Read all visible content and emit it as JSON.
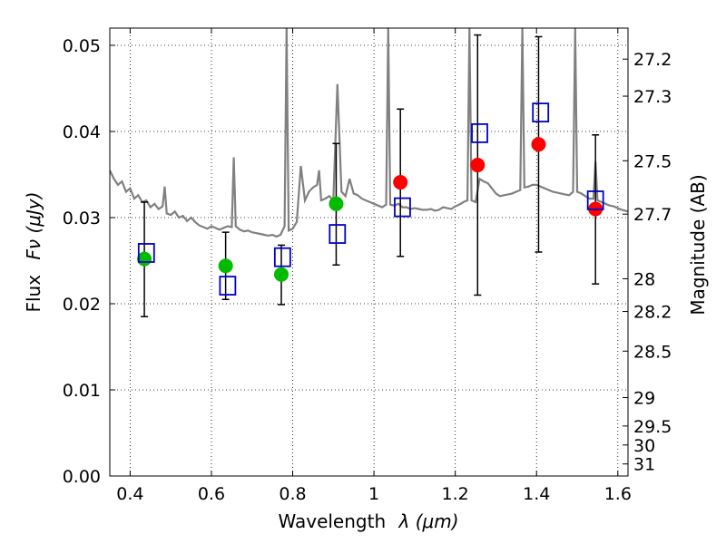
{
  "chart_data": {
    "type": "scatter",
    "xlabel_text": "Wavelength",
    "xlabel_math": "λ (μm)",
    "ylabel_text": "Flux",
    "ylabel_math": "Fν (μJy)",
    "y2label": "Magnitude (AB)",
    "xlim": [
      0.35,
      1.625
    ],
    "ylim": [
      0.0,
      0.052
    ],
    "grid": true,
    "xticks": [
      {
        "v": 0.4,
        "label": "0.4"
      },
      {
        "v": 0.6,
        "label": "0.6"
      },
      {
        "v": 0.8,
        "label": "0.8"
      },
      {
        "v": 1.0,
        "label": "1"
      },
      {
        "v": 1.2,
        "label": "1.2"
      },
      {
        "v": 1.4,
        "label": "1.4"
      },
      {
        "v": 1.6,
        "label": "1.6"
      }
    ],
    "yticks": [
      {
        "v": 0.0,
        "label": "0.00"
      },
      {
        "v": 0.01,
        "label": "0.01"
      },
      {
        "v": 0.02,
        "label": "0.02"
      },
      {
        "v": 0.03,
        "label": "0.03"
      },
      {
        "v": 0.04,
        "label": "0.04"
      },
      {
        "v": 0.05,
        "label": "0.05"
      }
    ],
    "mag_ticks": [
      {
        "v": 0.0484,
        "label": "27.2"
      },
      {
        "v": 0.0441,
        "label": "27.3"
      },
      {
        "v": 0.0366,
        "label": "27.5"
      },
      {
        "v": 0.0304,
        "label": "27.7"
      },
      {
        "v": 0.0229,
        "label": "28"
      },
      {
        "v": 0.0191,
        "label": "28.2"
      },
      {
        "v": 0.0145,
        "label": "28.5"
      },
      {
        "v": 0.0091,
        "label": "29"
      },
      {
        "v": 0.0058,
        "label": "29.5"
      },
      {
        "v": 0.0036,
        "label": "30"
      },
      {
        "v": 0.0014,
        "label": "31"
      }
    ],
    "series": [
      {
        "marker": "circle",
        "color": "#00bb00",
        "points": [
          {
            "x": 0.435,
            "y": 0.0252,
            "err_lo": 0.0185,
            "err_hi": 0.0318
          },
          {
            "x": 0.635,
            "y": 0.0244,
            "err_lo": 0.0205,
            "err_hi": 0.0283
          },
          {
            "x": 0.772,
            "y": 0.0234,
            "err_lo": 0.0199,
            "err_hi": 0.0268
          },
          {
            "x": 0.907,
            "y": 0.0316,
            "err_lo": 0.0245,
            "err_hi": 0.0386
          }
        ]
      },
      {
        "marker": "circle",
        "color": "#ff0000",
        "points": [
          {
            "x": 1.065,
            "y": 0.0341,
            "err_lo": 0.0255,
            "err_hi": 0.0426
          },
          {
            "x": 1.255,
            "y": 0.0361,
            "err_lo": 0.021,
            "err_hi": 0.0512
          },
          {
            "x": 1.405,
            "y": 0.0385,
            "err_lo": 0.026,
            "err_hi": 0.051
          },
          {
            "x": 1.545,
            "y": 0.031,
            "err_lo": 0.0223,
            "err_hi": 0.0396
          }
        ]
      },
      {
        "marker": "square",
        "color": "#0000cc",
        "points": [
          {
            "x": 0.44,
            "y": 0.0259
          },
          {
            "x": 0.64,
            "y": 0.0221
          },
          {
            "x": 0.775,
            "y": 0.0254
          },
          {
            "x": 0.91,
            "y": 0.0281
          },
          {
            "x": 1.07,
            "y": 0.0312
          },
          {
            "x": 1.26,
            "y": 0.0398
          },
          {
            "x": 1.41,
            "y": 0.0422
          },
          {
            "x": 1.545,
            "y": 0.032
          }
        ]
      }
    ],
    "spectrum": {
      "color": "#808080",
      "points": [
        [
          0.35,
          0.0355
        ],
        [
          0.36,
          0.0345
        ],
        [
          0.37,
          0.0338
        ],
        [
          0.38,
          0.0342
        ],
        [
          0.39,
          0.033
        ],
        [
          0.4,
          0.0334
        ],
        [
          0.41,
          0.0322
        ],
        [
          0.42,
          0.0326
        ],
        [
          0.43,
          0.0318
        ],
        [
          0.44,
          0.032
        ],
        [
          0.45,
          0.0312
        ],
        [
          0.46,
          0.0316
        ],
        [
          0.47,
          0.031
        ],
        [
          0.48,
          0.0313
        ],
        [
          0.485,
          0.0336
        ],
        [
          0.49,
          0.0305
        ],
        [
          0.5,
          0.0303
        ],
        [
          0.51,
          0.0307
        ],
        [
          0.52,
          0.03
        ],
        [
          0.53,
          0.0302
        ],
        [
          0.54,
          0.0296
        ],
        [
          0.55,
          0.03
        ],
        [
          0.56,
          0.0295
        ],
        [
          0.57,
          0.0291
        ],
        [
          0.58,
          0.0289
        ],
        [
          0.59,
          0.0287
        ],
        [
          0.6,
          0.029
        ],
        [
          0.61,
          0.0288
        ],
        [
          0.62,
          0.0286
        ],
        [
          0.63,
          0.0288
        ],
        [
          0.64,
          0.029
        ],
        [
          0.65,
          0.0289
        ],
        [
          0.655,
          0.037
        ],
        [
          0.66,
          0.029
        ],
        [
          0.67,
          0.0286
        ],
        [
          0.68,
          0.0284
        ],
        [
          0.69,
          0.0285
        ],
        [
          0.7,
          0.0283
        ],
        [
          0.71,
          0.0282
        ],
        [
          0.72,
          0.0281
        ],
        [
          0.73,
          0.028
        ],
        [
          0.74,
          0.0279
        ],
        [
          0.75,
          0.028
        ],
        [
          0.76,
          0.0278
        ],
        [
          0.77,
          0.028
        ],
        [
          0.78,
          0.029
        ],
        [
          0.785,
          0.052
        ],
        [
          0.79,
          0.0285
        ],
        [
          0.8,
          0.0287
        ],
        [
          0.81,
          0.0295
        ],
        [
          0.82,
          0.036
        ],
        [
          0.83,
          0.032
        ],
        [
          0.84,
          0.033
        ],
        [
          0.85,
          0.0335
        ],
        [
          0.86,
          0.0338
        ],
        [
          0.865,
          0.0355
        ],
        [
          0.87,
          0.032
        ],
        [
          0.88,
          0.0322
        ],
        [
          0.89,
          0.0325
        ],
        [
          0.9,
          0.032
        ],
        [
          0.91,
          0.0455
        ],
        [
          0.92,
          0.033
        ],
        [
          0.93,
          0.0325
        ],
        [
          0.94,
          0.0345
        ],
        [
          0.95,
          0.0328
        ],
        [
          0.96,
          0.0326
        ],
        [
          0.97,
          0.0322
        ],
        [
          0.98,
          0.032
        ],
        [
          0.99,
          0.0318
        ],
        [
          1.0,
          0.0316
        ],
        [
          1.01,
          0.0314
        ],
        [
          1.02,
          0.0312
        ],
        [
          1.03,
          0.0315
        ],
        [
          1.035,
          0.052
        ],
        [
          1.04,
          0.0315
        ],
        [
          1.05,
          0.0314
        ],
        [
          1.06,
          0.0316
        ],
        [
          1.07,
          0.0312
        ],
        [
          1.08,
          0.0312
        ],
        [
          1.09,
          0.031
        ],
        [
          1.1,
          0.0311
        ],
        [
          1.11,
          0.031
        ],
        [
          1.12,
          0.0309
        ],
        [
          1.13,
          0.0309
        ],
        [
          1.14,
          0.031
        ],
        [
          1.15,
          0.0308
        ],
        [
          1.16,
          0.0309
        ],
        [
          1.17,
          0.0312
        ],
        [
          1.18,
          0.0311
        ],
        [
          1.19,
          0.031
        ],
        [
          1.2,
          0.0313
        ],
        [
          1.21,
          0.0315
        ],
        [
          1.22,
          0.0318
        ],
        [
          1.23,
          0.032
        ],
        [
          1.235,
          0.052
        ],
        [
          1.24,
          0.032
        ],
        [
          1.25,
          0.0318
        ],
        [
          1.26,
          0.0345
        ],
        [
          1.27,
          0.0342
        ],
        [
          1.28,
          0.034
        ],
        [
          1.29,
          0.0334
        ],
        [
          1.3,
          0.0328
        ],
        [
          1.31,
          0.0325
        ],
        [
          1.32,
          0.0326
        ],
        [
          1.33,
          0.0327
        ],
        [
          1.34,
          0.0328
        ],
        [
          1.35,
          0.033
        ],
        [
          1.36,
          0.0332
        ],
        [
          1.365,
          0.052
        ],
        [
          1.37,
          0.0335
        ],
        [
          1.38,
          0.0336
        ],
        [
          1.39,
          0.0338
        ],
        [
          1.4,
          0.0338
        ],
        [
          1.41,
          0.0336
        ],
        [
          1.42,
          0.0334
        ],
        [
          1.43,
          0.0332
        ],
        [
          1.44,
          0.033
        ],
        [
          1.45,
          0.0329
        ],
        [
          1.46,
          0.0328
        ],
        [
          1.47,
          0.0327
        ],
        [
          1.48,
          0.0326
        ],
        [
          1.49,
          0.033
        ],
        [
          1.495,
          0.052
        ],
        [
          1.5,
          0.033
        ],
        [
          1.51,
          0.0328
        ],
        [
          1.52,
          0.0325
        ],
        [
          1.53,
          0.0322
        ],
        [
          1.54,
          0.0322
        ],
        [
          1.545,
          0.0365
        ],
        [
          1.55,
          0.032
        ],
        [
          1.56,
          0.0318
        ],
        [
          1.57,
          0.0316
        ],
        [
          1.58,
          0.0314
        ],
        [
          1.59,
          0.0313
        ],
        [
          1.6,
          0.0311
        ],
        [
          1.61,
          0.0309
        ],
        [
          1.625,
          0.0307
        ]
      ]
    }
  }
}
